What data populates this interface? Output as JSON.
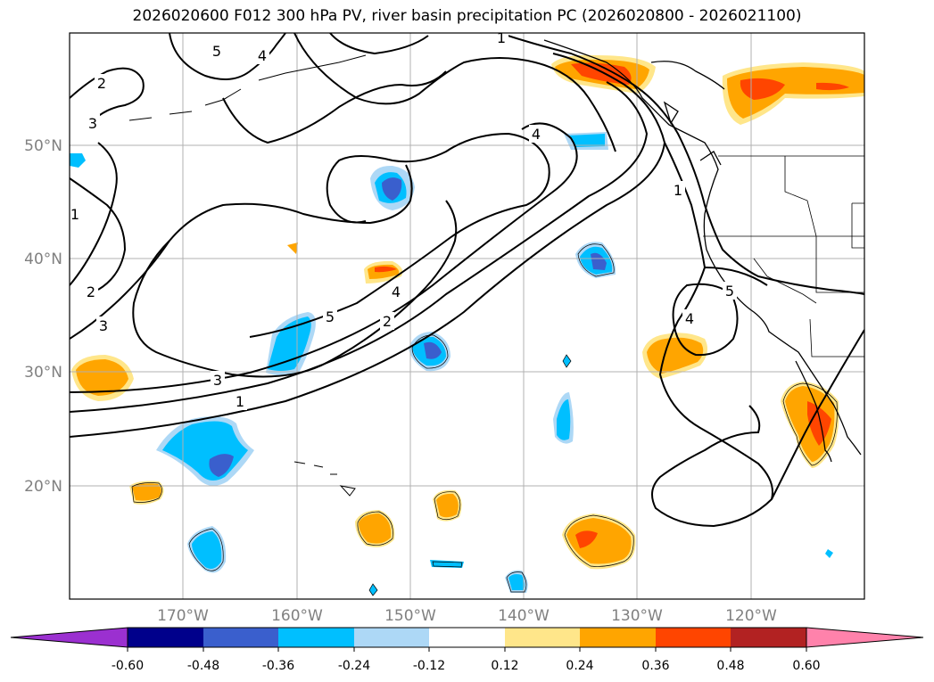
{
  "title": "2026020600 F012 300 hPa PV, river basin precipitation PC (2026020800 - 2026021100)",
  "latitude_labels": [
    "50°N",
    "40°N",
    "30°N",
    "20°N"
  ],
  "longitude_labels": [
    "170°W",
    "160°W",
    "150°W",
    "140°W",
    "130°W",
    "120°W"
  ],
  "contour_labels": [
    "5",
    "4",
    "2",
    "3",
    "1",
    "4",
    "1",
    "1",
    "2",
    "3",
    "5",
    "4",
    "2",
    "3",
    "1",
    "4",
    "5"
  ],
  "colorbar": {
    "ticks": [
      "-0.60",
      "-0.48",
      "-0.36",
      "-0.24",
      "-0.12",
      "0.12",
      "0.24",
      "0.36",
      "0.48",
      "0.60"
    ],
    "colors": [
      "#9b30d0",
      "#00008b",
      "#3a5fcd",
      "#00bfff",
      "#add8f6",
      "#ffffff",
      "#ffe68a",
      "#ffa500",
      "#ff4500",
      "#b22222",
      "#ff82ab"
    ]
  },
  "colors": {
    "neg_light": "#add8f6",
    "neg_mid": "#00bfff",
    "neg_dark": "#3a5fcd",
    "pos_light": "#ffe68a",
    "pos_mid": "#ffa500",
    "pos_dark": "#ff4500",
    "grid": "#b0b0b0"
  }
}
